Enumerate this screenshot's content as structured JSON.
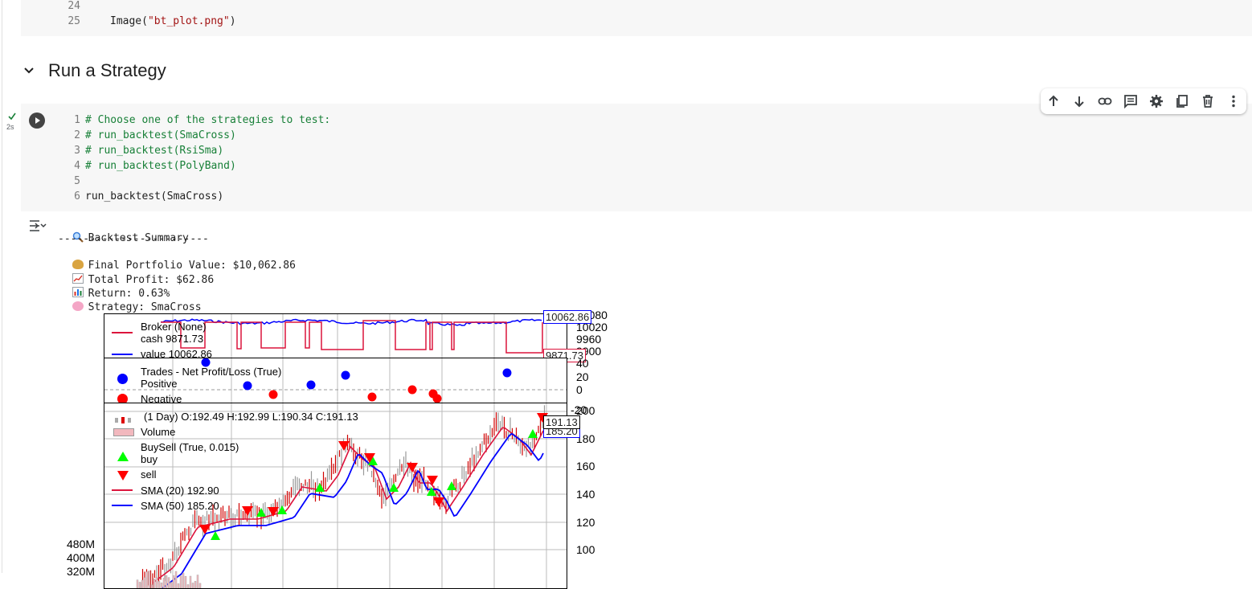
{
  "prev_cell": {
    "line_numbers": [
      "24",
      "25"
    ],
    "code_line_25": {
      "fn": "Image(",
      "str": "\"bt_plot.png\"",
      "close": ")"
    }
  },
  "section": {
    "title": "Run a Strategy",
    "collapse_icon": "chevron-down-icon"
  },
  "cell": {
    "status_icon": "check-icon",
    "exec_time": "2s",
    "run_icon": "play-icon",
    "line_numbers": [
      "1",
      "2",
      "3",
      "4",
      "5",
      "6"
    ],
    "lines": [
      "# Choose one of the strategies to test:",
      "# run_backtest(SmaCross)",
      "# run_backtest(RsiSma)",
      "# run_backtest(PolyBand)",
      "",
      "run_backtest(SmaCross)"
    ],
    "toolbar": [
      "arrow-up-icon",
      "arrow-down-icon",
      "link-icon",
      "comment-icon",
      "gear-icon",
      "mirror-cell-icon",
      "trash-icon",
      "more-vert-icon"
    ]
  },
  "output": {
    "output_menu_icon": "output-options-icon",
    "summary_title": "Backtest Summary",
    "divider": "------------------------",
    "final_value": "Final Portfolio Value: $10,062.86",
    "total_profit": "Total Profit: $62.86",
    "return": "Return: 0.63%",
    "strategy": "Strategy: SmaCross"
  },
  "chart_data": [
    {
      "type": "line",
      "panel": "broker",
      "legend": [
        "Broker (None)",
        "cash 9871.73",
        "value 10062.86"
      ],
      "series": [
        {
          "name": "cash 9871.73",
          "color": "#dc143c",
          "last": 9871.73
        },
        {
          "name": "value 10062.86",
          "color": "#0000ff",
          "last": 10062.86
        }
      ],
      "yticks": [
        "10080",
        "10020",
        "9960",
        "9900"
      ],
      "last_labels": [
        "10062.86",
        "9871.73"
      ]
    },
    {
      "type": "scatter",
      "panel": "trades",
      "legend": [
        "Trades - Net Profit/Loss (True)",
        "Positive",
        "Negative"
      ],
      "series": [
        {
          "name": "Positive",
          "color": "#0000ff"
        },
        {
          "name": "Negative",
          "color": "#ff0000"
        }
      ],
      "yticks": [
        "40",
        "20",
        "0",
        "-20"
      ]
    },
    {
      "type": "line",
      "panel": "price",
      "legend": [
        "(1 Day) O:192.49 H:192.99 L:190.34 C:191.13",
        "Volume",
        "BuySell (True, 0.015)",
        "buy",
        "sell",
        "SMA (20) 192.90",
        "SMA (50) 185.20"
      ],
      "series": [
        {
          "name": "SMA (20) 192.90",
          "color": "#dc143c"
        },
        {
          "name": "SMA (50) 185.20",
          "color": "#0000ff"
        }
      ],
      "yticks": [
        "200",
        "180",
        "160",
        "140",
        "120",
        "100"
      ],
      "volume_ticks": [
        "480M",
        "400M",
        "320M"
      ],
      "last_labels": [
        "191.13",
        "185.20"
      ]
    }
  ]
}
